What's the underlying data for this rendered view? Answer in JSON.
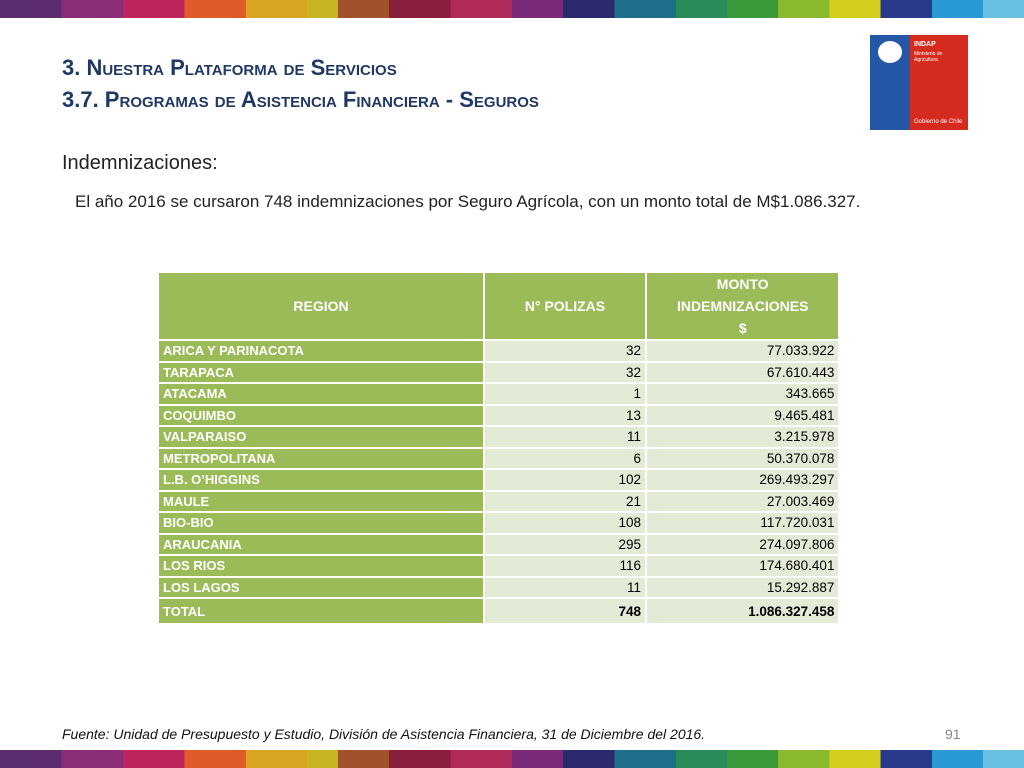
{
  "header": {
    "title_line1": "3. Nuestra Plataforma de Servicios",
    "title_line2": "3.7. Programas de Asistencia Financiera - Seguros"
  },
  "logo": {
    "name": "INDAP",
    "ministry": "Ministerio de Agricultura",
    "government": "Gobierno de Chile"
  },
  "section": {
    "heading": "Indemnizaciones:",
    "text": "El año 2016 se cursaron 748 indemnizaciones por Seguro Agrícola, con un monto total de M$1.086.327."
  },
  "table": {
    "headers": [
      "REGION",
      "N° POLIZAS",
      "MONTO INDEMNIZACIONES $"
    ],
    "rows": [
      [
        "ARICA Y PARINACOTA",
        "32",
        "77.033.922"
      ],
      [
        "TARAPACA",
        "32",
        "67.610.443"
      ],
      [
        "ATACAMA",
        "1",
        "343.665"
      ],
      [
        "COQUIMBO",
        "13",
        "9.465.481"
      ],
      [
        "VALPARAISO",
        "11",
        "3.215.978"
      ],
      [
        "METROPOLITANA",
        "6",
        "50.370.078"
      ],
      [
        "L.B. O’HIGGINS",
        "102",
        "269.493.297"
      ],
      [
        "MAULE",
        "21",
        "27.003.469"
      ],
      [
        "BIO-BIO",
        "108",
        "117.720.031"
      ],
      [
        "ARAUCANIA",
        "295",
        "274.097.806"
      ],
      [
        "LOS RIOS",
        "116",
        "174.680.401"
      ],
      [
        "LOS LAGOS",
        "11",
        "15.292.887"
      ]
    ],
    "total": [
      "TOTAL",
      "748",
      "1.086.327.458"
    ]
  },
  "footer": {
    "source": "Fuente: Unidad de Presupuesto y Estudio, División de Asistencia Financiera, 31 de Diciembre del 2016.",
    "page": "91"
  }
}
